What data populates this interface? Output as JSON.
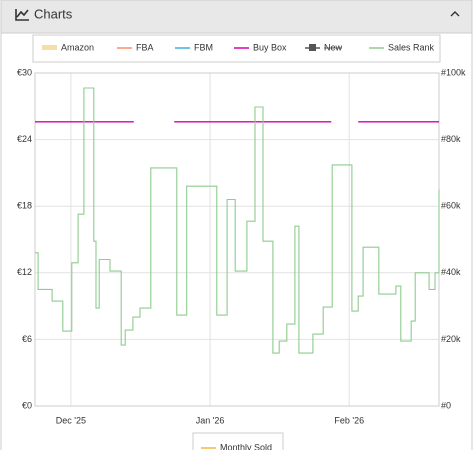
{
  "panel": {
    "title": "Charts"
  },
  "chart_data": {
    "type": "line",
    "xlim": [
      -8,
      82
    ],
    "xticks": [
      {
        "value": 0,
        "label": "Dec '25"
      },
      {
        "value": 31,
        "label": "Jan '26"
      },
      {
        "value": 62,
        "label": "Feb '26"
      }
    ],
    "ylim": [
      0,
      30
    ],
    "yticks": [
      {
        "value": 0,
        "label": "€0"
      },
      {
        "value": 6,
        "label": "€6"
      },
      {
        "value": 12,
        "label": "€12"
      },
      {
        "value": 18,
        "label": "€18"
      },
      {
        "value": 24,
        "label": "€24"
      },
      {
        "value": 30,
        "label": "€30"
      }
    ],
    "y2lim": [
      0,
      100000
    ],
    "y2ticks": [
      {
        "value": 0,
        "label": "#0"
      },
      {
        "value": 20000,
        "label": "#20k"
      },
      {
        "value": 40000,
        "label": "#40k"
      },
      {
        "value": 60000,
        "label": "#60k"
      },
      {
        "value": 80000,
        "label": "#80k"
      },
      {
        "value": 100000,
        "label": "#100k"
      }
    ],
    "grid": true,
    "series": [
      {
        "name": "Amazon",
        "color": "#f7c46c",
        "style": "area",
        "x": [],
        "values": []
      },
      {
        "name": "FBA",
        "color": "#ff8c69",
        "style": "line",
        "x": [],
        "values": []
      },
      {
        "name": "FBM",
        "color": "#3cb0e0",
        "style": "line",
        "x": [],
        "values": []
      },
      {
        "name": "Buy Box",
        "color": "#d400b0",
        "style": "line",
        "x": [
          -8,
          14,
          18,
          23,
          58,
          61,
          64,
          82
        ],
        "values": [
          25.6,
          25.6,
          null,
          25.6,
          25.6,
          null,
          25.6,
          25.6
        ]
      },
      {
        "name": "New",
        "color": "#555555",
        "style": "marker",
        "hidden": true,
        "x": [],
        "values": []
      },
      {
        "name": "Sales Rank",
        "color": "#8fcc8f",
        "style": "step",
        "axis": "y2",
        "x": [
          -8,
          -7.3,
          -4.2,
          -1.8,
          0.2,
          1.6,
          2.9,
          5.1,
          5.6,
          6.3,
          8.7,
          11.2,
          12.1,
          13.8,
          15.4,
          17.8,
          23.6,
          25.8,
          32.5,
          34.8,
          36.6,
          39.2,
          41.0,
          42.8,
          45.0,
          46.4,
          48.1,
          49.9,
          50.8,
          53.9,
          56.2,
          58.2,
          62.6,
          64.0,
          65.1,
          68.6,
          72.4,
          73.5,
          75.8,
          76.7,
          79.8,
          81.1,
          82
        ],
        "values": [
          46000,
          35000,
          31500,
          22500,
          43000,
          57600,
          95500,
          49500,
          29400,
          44000,
          40500,
          18300,
          22800,
          26700,
          29400,
          71500,
          27300,
          66000,
          27300,
          62000,
          40500,
          55500,
          89800,
          49500,
          15900,
          19500,
          24600,
          54000,
          15900,
          21600,
          29700,
          72400,
          28500,
          33000,
          47700,
          33600,
          36000,
          19500,
          25500,
          40000,
          35000,
          40000,
          65000
        ]
      }
    ],
    "lower_legend": {
      "name": "Monthly Sold",
      "color": "#f5b445"
    }
  }
}
